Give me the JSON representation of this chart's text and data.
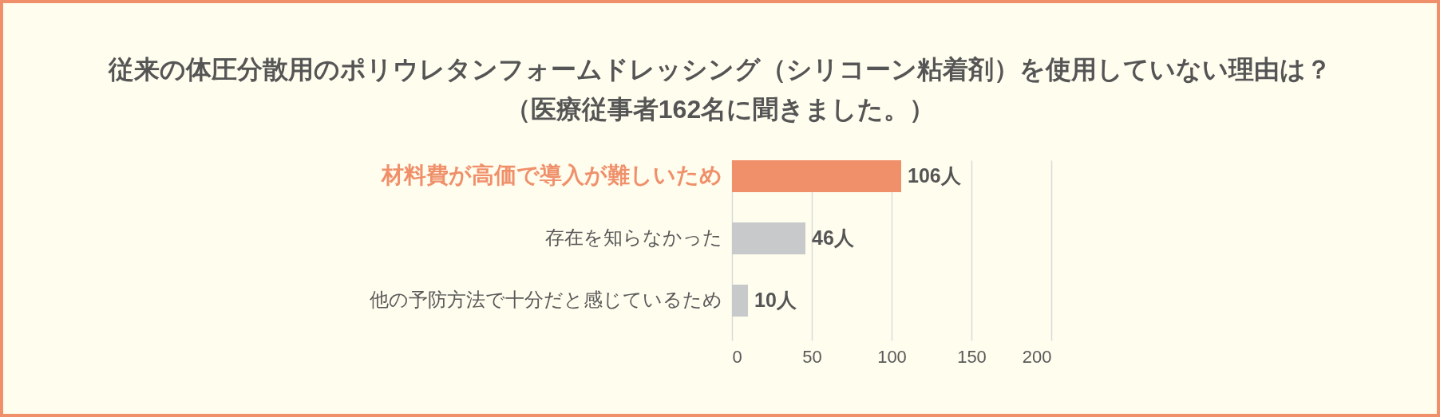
{
  "chart_data": {
    "type": "bar",
    "orientation": "horizontal",
    "title": "従来の体圧分散用のポリウレタンフォームドレッシング（シリコーン粘着剤）を使用していない理由は？",
    "subtitle": "（医療従事者162名に聞きました。）",
    "categories": [
      "材料費が高価で導入が難しいため",
      "存在を知らなかった",
      "他の予防方法で十分だと感じているため"
    ],
    "values": [
      106,
      46,
      10
    ],
    "colors": [
      "#f0906b",
      "#c8c9cb",
      "#c8c9cb"
    ],
    "value_labels": [
      "106人",
      "46人",
      "10人"
    ],
    "xlim": [
      0,
      200
    ],
    "xticks": [
      0,
      50,
      100,
      150,
      200
    ],
    "grid": "x"
  }
}
